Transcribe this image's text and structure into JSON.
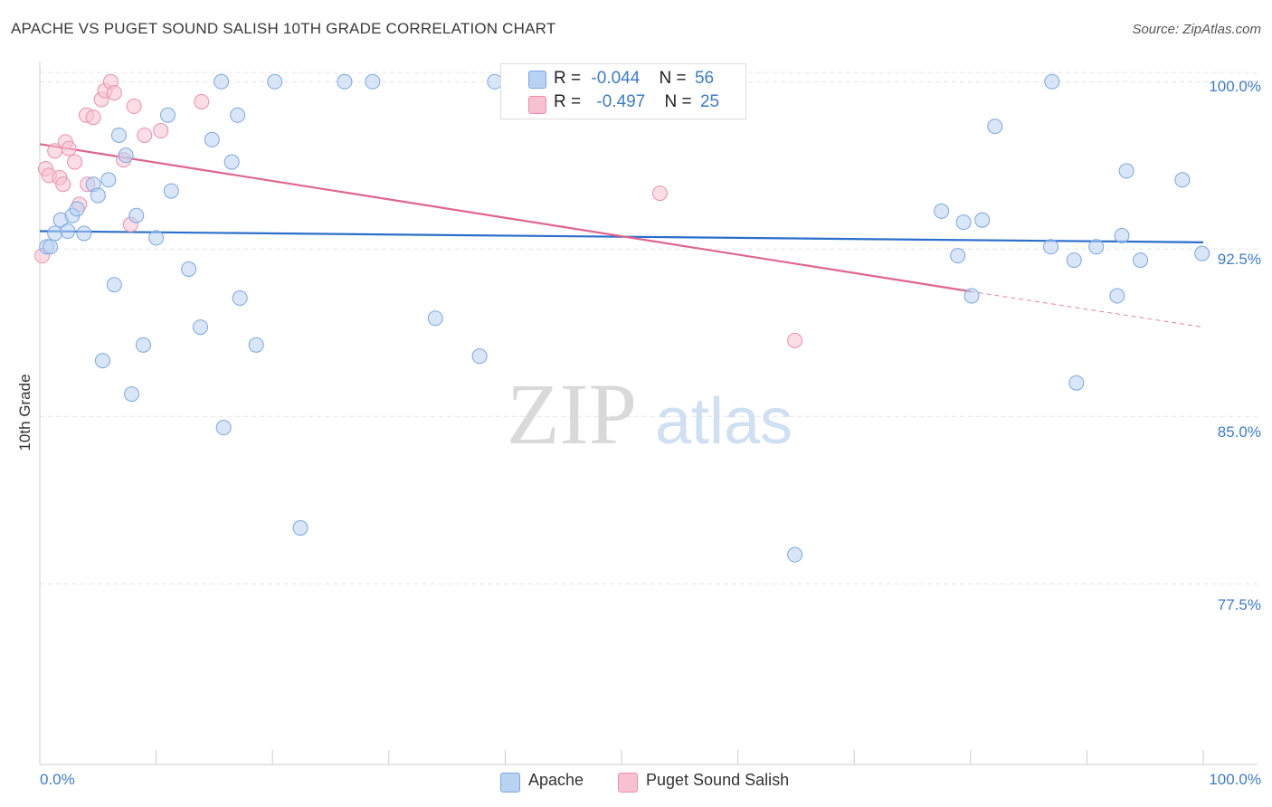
{
  "header": {
    "title": "APACHE VS PUGET SOUND SALISH 10TH GRADE CORRELATION CHART",
    "source": "Source: ZipAtlas.com"
  },
  "legend": {
    "rows": [
      {
        "r_label": "R =",
        "r_value": "-0.044",
        "n_label": "N =",
        "n_value": "56"
      },
      {
        "r_label": "R =",
        "r_value": "-0.497",
        "n_label": "N =",
        "n_value": "25"
      }
    ],
    "bottom": [
      "Apache",
      "Puget Sound Salish"
    ]
  },
  "watermark": {
    "zip": "ZIP",
    "atlas": "atlas"
  },
  "colors": {
    "apache_fill": "#b8d2f2",
    "apache_stroke": "#7aa8e0",
    "apache_line": "#2b6fcb",
    "salish_fill": "#f7c1d2",
    "salish_stroke": "#ec8fae",
    "salish_line": "#e0648f",
    "tick_label": "#3d7cc9",
    "grid": "#e4e4e4"
  },
  "chart_data": {
    "type": "scatter",
    "title": "APACHE VS PUGET SOUND SALISH 10TH GRADE CORRELATION CHART",
    "xlabel": "",
    "ylabel": "10th Grade",
    "xlim": [
      0,
      100
    ],
    "ylim": [
      69.4,
      100.7
    ],
    "x_tick_labels": [
      "0.0%",
      "100.0%"
    ],
    "y_ticks": [
      100.0,
      92.5,
      85.0,
      77.5
    ],
    "y_tick_labels": [
      "100.0%",
      "92.5%",
      "85.0%",
      "77.5%"
    ],
    "grid": "horizontal dashed",
    "legend_position": "top-center",
    "series": [
      {
        "name": "Apache",
        "R": -0.044,
        "N": 56,
        "trend": {
          "x": [
            0,
            100
          ],
          "y": [
            93.3,
            92.8
          ]
        },
        "points": [
          {
            "x": 0.6,
            "y": 92.6
          },
          {
            "x": 0.9,
            "y": 92.6
          },
          {
            "x": 1.3,
            "y": 93.2
          },
          {
            "x": 1.8,
            "y": 93.8
          },
          {
            "x": 2.4,
            "y": 93.3
          },
          {
            "x": 2.8,
            "y": 94.0
          },
          {
            "x": 3.2,
            "y": 94.3
          },
          {
            "x": 3.8,
            "y": 93.2
          },
          {
            "x": 4.6,
            "y": 95.4
          },
          {
            "x": 5.0,
            "y": 94.9
          },
          {
            "x": 5.4,
            "y": 87.5
          },
          {
            "x": 5.9,
            "y": 95.6
          },
          {
            "x": 6.4,
            "y": 90.9
          },
          {
            "x": 6.8,
            "y": 97.6
          },
          {
            "x": 7.4,
            "y": 96.7
          },
          {
            "x": 7.9,
            "y": 86.0
          },
          {
            "x": 8.3,
            "y": 94.0
          },
          {
            "x": 8.9,
            "y": 88.2
          },
          {
            "x": 10.0,
            "y": 93.0
          },
          {
            "x": 11.3,
            "y": 95.1
          },
          {
            "x": 11.0,
            "y": 98.5
          },
          {
            "x": 12.8,
            "y": 91.6
          },
          {
            "x": 13.8,
            "y": 89.0
          },
          {
            "x": 14.8,
            "y": 97.4
          },
          {
            "x": 15.6,
            "y": 100.0
          },
          {
            "x": 15.8,
            "y": 84.5
          },
          {
            "x": 16.5,
            "y": 96.4
          },
          {
            "x": 17.0,
            "y": 98.5
          },
          {
            "x": 17.2,
            "y": 90.3
          },
          {
            "x": 18.6,
            "y": 88.2
          },
          {
            "x": 20.2,
            "y": 100.0
          },
          {
            "x": 22.4,
            "y": 80.0
          },
          {
            "x": 26.2,
            "y": 100.0
          },
          {
            "x": 28.6,
            "y": 100.0
          },
          {
            "x": 34.0,
            "y": 89.4
          },
          {
            "x": 37.8,
            "y": 87.7
          },
          {
            "x": 39.1,
            "y": 100.0
          },
          {
            "x": 43.6,
            "y": 100.0
          },
          {
            "x": 64.9,
            "y": 78.8
          },
          {
            "x": 77.5,
            "y": 94.2
          },
          {
            "x": 78.9,
            "y": 92.2
          },
          {
            "x": 79.4,
            "y": 93.7
          },
          {
            "x": 80.1,
            "y": 90.4
          },
          {
            "x": 81.0,
            "y": 93.8
          },
          {
            "x": 82.1,
            "y": 98.0
          },
          {
            "x": 86.9,
            "y": 92.6
          },
          {
            "x": 87.0,
            "y": 100.0
          },
          {
            "x": 88.9,
            "y": 92.0
          },
          {
            "x": 89.1,
            "y": 86.5
          },
          {
            "x": 90.8,
            "y": 92.6
          },
          {
            "x": 92.6,
            "y": 90.4
          },
          {
            "x": 93.0,
            "y": 93.1
          },
          {
            "x": 93.4,
            "y": 96.0
          },
          {
            "x": 94.6,
            "y": 92.0
          },
          {
            "x": 98.2,
            "y": 95.6
          },
          {
            "x": 99.9,
            "y": 92.3
          }
        ]
      },
      {
        "name": "Puget Sound Salish",
        "R": -0.497,
        "N": 25,
        "trend": {
          "x": [
            0,
            80
          ],
          "y": [
            97.2,
            90.6
          ]
        },
        "trend_extension": {
          "x": [
            80,
            100
          ],
          "y": [
            90.6,
            89.0
          ]
        },
        "points": [
          {
            "x": 0.2,
            "y": 92.2
          },
          {
            "x": 0.5,
            "y": 96.1
          },
          {
            "x": 0.8,
            "y": 95.8
          },
          {
            "x": 1.3,
            "y": 96.9
          },
          {
            "x": 1.7,
            "y": 95.7
          },
          {
            "x": 2.0,
            "y": 95.4
          },
          {
            "x": 2.2,
            "y": 97.3
          },
          {
            "x": 2.5,
            "y": 97.0
          },
          {
            "x": 3.0,
            "y": 96.4
          },
          {
            "x": 3.4,
            "y": 94.5
          },
          {
            "x": 4.1,
            "y": 95.4
          },
          {
            "x": 4.0,
            "y": 98.5
          },
          {
            "x": 4.6,
            "y": 98.4
          },
          {
            "x": 5.3,
            "y": 99.2
          },
          {
            "x": 5.6,
            "y": 99.6
          },
          {
            "x": 6.1,
            "y": 100.0
          },
          {
            "x": 6.4,
            "y": 99.5
          },
          {
            "x": 7.2,
            "y": 96.5
          },
          {
            "x": 7.8,
            "y": 93.6
          },
          {
            "x": 8.1,
            "y": 98.9
          },
          {
            "x": 9.0,
            "y": 97.6
          },
          {
            "x": 10.4,
            "y": 97.8
          },
          {
            "x": 13.9,
            "y": 99.1
          },
          {
            "x": 53.3,
            "y": 95.0
          },
          {
            "x": 64.9,
            "y": 88.4
          }
        ]
      }
    ]
  }
}
